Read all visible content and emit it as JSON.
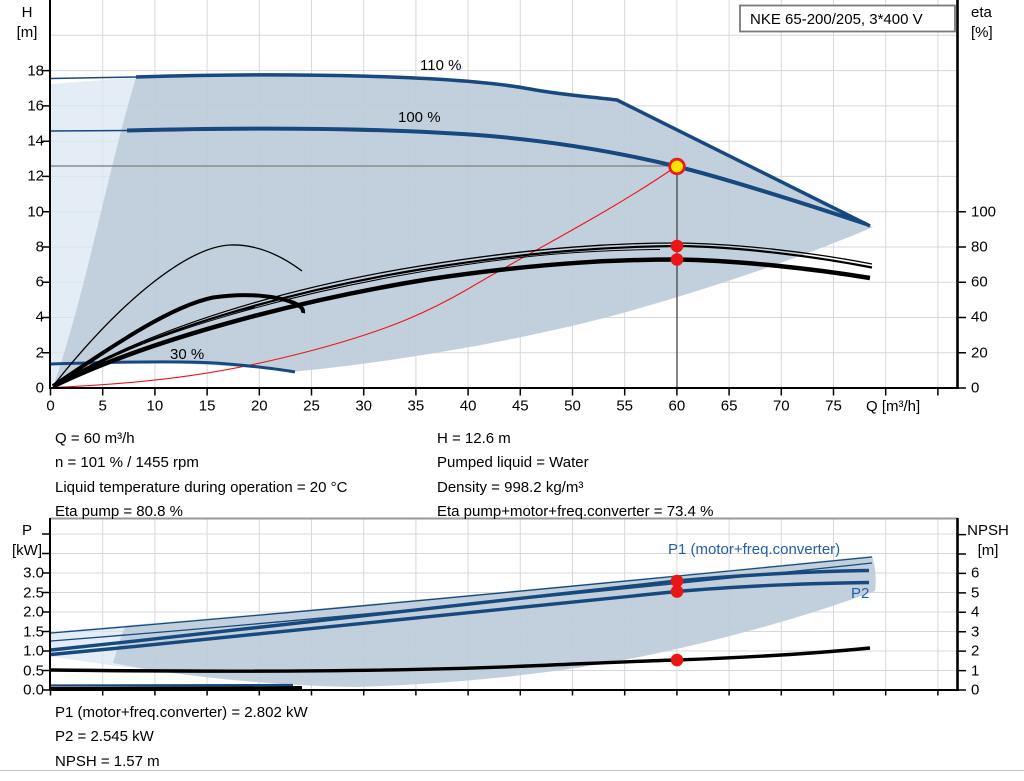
{
  "title_box": {
    "label": "NKE 65-200/205, 3*400 V"
  },
  "top_chart": {
    "axis_left": {
      "name": "H",
      "unit": "[m]",
      "ticks": [
        "0",
        "2",
        "4",
        "6",
        "8",
        "10",
        "12",
        "14",
        "16",
        "18"
      ]
    },
    "axis_right": {
      "name": "eta",
      "unit": "[%]",
      "ticks": [
        "0",
        "20",
        "40",
        "60",
        "80",
        "100"
      ]
    },
    "axis_x": {
      "label": "Q [m³/h]",
      "ticks": [
        "0",
        "5",
        "10",
        "15",
        "20",
        "25",
        "30",
        "35",
        "40",
        "45",
        "50",
        "55",
        "60",
        "65",
        "70",
        "75"
      ]
    },
    "curve_labels": {
      "s110": "110 %",
      "s100": "100 %",
      "s30": "30 %"
    }
  },
  "bottom_chart": {
    "axis_left": {
      "name": "P",
      "unit": "[kW]",
      "ticks": [
        "0.0",
        "0.5",
        "1.0",
        "1.5",
        "2.0",
        "2.5",
        "3.0"
      ]
    },
    "axis_right": {
      "name": "NPSH",
      "unit": "[m]",
      "ticks": [
        "0",
        "1",
        "2",
        "3",
        "4",
        "5",
        "6"
      ]
    },
    "labels": {
      "p1": "P1 (motor+freq.converter)",
      "p2": "P2"
    }
  },
  "info_top": {
    "left": [
      "Q = 60 m³/h",
      "n = 101 % / 1455 rpm",
      "Liquid temperature during operation = 20 °C",
      "Eta pump = 80.8 %"
    ],
    "right": [
      "H = 12.6 m",
      "Pumped liquid = Water",
      "Density = 998.2 kg/m³",
      "Eta pump+motor+freq.converter = 73.4 %"
    ]
  },
  "info_bottom": {
    "lines": [
      "P1 (motor+freq.converter) = 2.802 kW",
      "P2 = 2.545 kW",
      "NPSH = 1.57 m"
    ]
  },
  "colors": {
    "curve_blue": "#17497E",
    "label_blue": "#235fa8",
    "envelope_dark": "#b9c8d7",
    "envelope_light": "#dbe7f2",
    "red": "#ec1515",
    "operating_point_fill": "#ffe600",
    "grid": "#d8d8d8"
  },
  "chart_data": [
    {
      "type": "line",
      "title": "NKE 65-200/205, 3*400 V",
      "xlabel": "Q [m³/h]",
      "ylabel_left": "H [m]",
      "ylabel_right": "eta [%]",
      "xlim": [
        0,
        87
      ],
      "ylim_left": [
        0,
        22
      ],
      "ylim_right": [
        0,
        110
      ],
      "grid": true,
      "envelope": "shaded duty range between 30 % and 110 % speed curves",
      "series": [
        {
          "name": "110 %",
          "axis": "H",
          "color": "#17497E",
          "points": [
            [
              8.2,
              17.6
            ],
            [
              20,
              17.7
            ],
            [
              35,
              17.5
            ],
            [
              45,
              17.1
            ],
            [
              54.4,
              16.3
            ],
            [
              65,
              13.0
            ],
            [
              79,
              9.1
            ]
          ]
        },
        {
          "name": "100 %",
          "axis": "H",
          "color": "#17497E",
          "points": [
            [
              0,
              14.6
            ],
            [
              10,
              14.6
            ],
            [
              25,
              14.55
            ],
            [
              40,
              14.0
            ],
            [
              50,
              13.4
            ],
            [
              60,
              12.6
            ],
            [
              70,
              11.0
            ],
            [
              78.5,
              9.3
            ]
          ]
        },
        {
          "name": "30 %",
          "axis": "H",
          "color": "#17497E",
          "points": [
            [
              0,
              1.4
            ],
            [
              8,
              1.42
            ],
            [
              14,
              1.4
            ],
            [
              19,
              1.2
            ],
            [
              23.5,
              0.9
            ]
          ]
        },
        {
          "name": "Eta pump",
          "axis": "eta",
          "color": "#000000",
          "points": [
            [
              0,
              0
            ],
            [
              10,
              29
            ],
            [
              20,
              50
            ],
            [
              30,
              64
            ],
            [
              40,
              72.5
            ],
            [
              50,
              78
            ],
            [
              60,
              80.8
            ],
            [
              70,
              76.5
            ],
            [
              78,
              68.5
            ]
          ]
        },
        {
          "name": "Eta pump+motor+freq.converter",
          "axis": "eta",
          "color": "#000000",
          "points": [
            [
              0,
              0
            ],
            [
              10,
              26
            ],
            [
              20,
              44
            ],
            [
              30,
              57
            ],
            [
              40,
              65
            ],
            [
              50,
              70.5
            ],
            [
              60,
              73.4
            ],
            [
              70,
              69.5
            ],
            [
              78,
              62
            ]
          ]
        },
        {
          "name": "System curve",
          "axis": "H",
          "color": "#ec1515",
          "points": [
            [
              0,
              0
            ],
            [
              20,
              1.4
            ],
            [
              30,
              3.15
            ],
            [
              40,
              5.6
            ],
            [
              50,
              8.75
            ],
            [
              60,
              12.6
            ]
          ]
        }
      ],
      "operating_point": {
        "Q": 60,
        "H": 12.6,
        "eta_pump": 80.8,
        "eta_total": 73.4
      }
    },
    {
      "type": "line",
      "xlabel": "Q [m³/h]",
      "ylabel_left": "P [kW]",
      "ylabel_right": "NPSH [m]",
      "xlim": [
        0,
        87
      ],
      "ylim_left": [
        0,
        4.4
      ],
      "ylim_right": [
        0,
        8.8
      ],
      "grid": true,
      "series": [
        {
          "name": "P1 (motor+freq.converter)",
          "axis": "P",
          "color": "#17497E",
          "points": [
            [
              0,
              1.03
            ],
            [
              20,
              1.65
            ],
            [
              40,
              2.25
            ],
            [
              60,
              2.802
            ],
            [
              78.5,
              3.05
            ]
          ]
        },
        {
          "name": "P2",
          "axis": "P",
          "color": "#17497E",
          "points": [
            [
              0,
              0.92
            ],
            [
              20,
              1.45
            ],
            [
              40,
              2.0
            ],
            [
              60,
              2.545
            ],
            [
              78.5,
              2.74
            ]
          ]
        },
        {
          "name": "P1 110 %",
          "axis": "P",
          "color": "#17497E",
          "points": [
            [
              0,
              1.46
            ],
            [
              40,
              2.45
            ],
            [
              79,
              3.4
            ]
          ]
        },
        {
          "name": "P2 110 %",
          "axis": "P",
          "color": "#17497E",
          "points": [
            [
              0,
              1.26
            ],
            [
              40,
              2.25
            ],
            [
              79,
              3.25
            ]
          ]
        },
        {
          "name": "NPSH",
          "axis": "NPSH",
          "color": "#000000",
          "points": [
            [
              0,
              1.0
            ],
            [
              30,
              1.05
            ],
            [
              50,
              1.3
            ],
            [
              60,
              1.57
            ],
            [
              70,
              1.85
            ],
            [
              79,
              2.16
            ]
          ]
        }
      ],
      "marked_values": {
        "P1_kW": 2.802,
        "P2_kW": 2.545,
        "NPSH_m": 1.57
      }
    }
  ]
}
